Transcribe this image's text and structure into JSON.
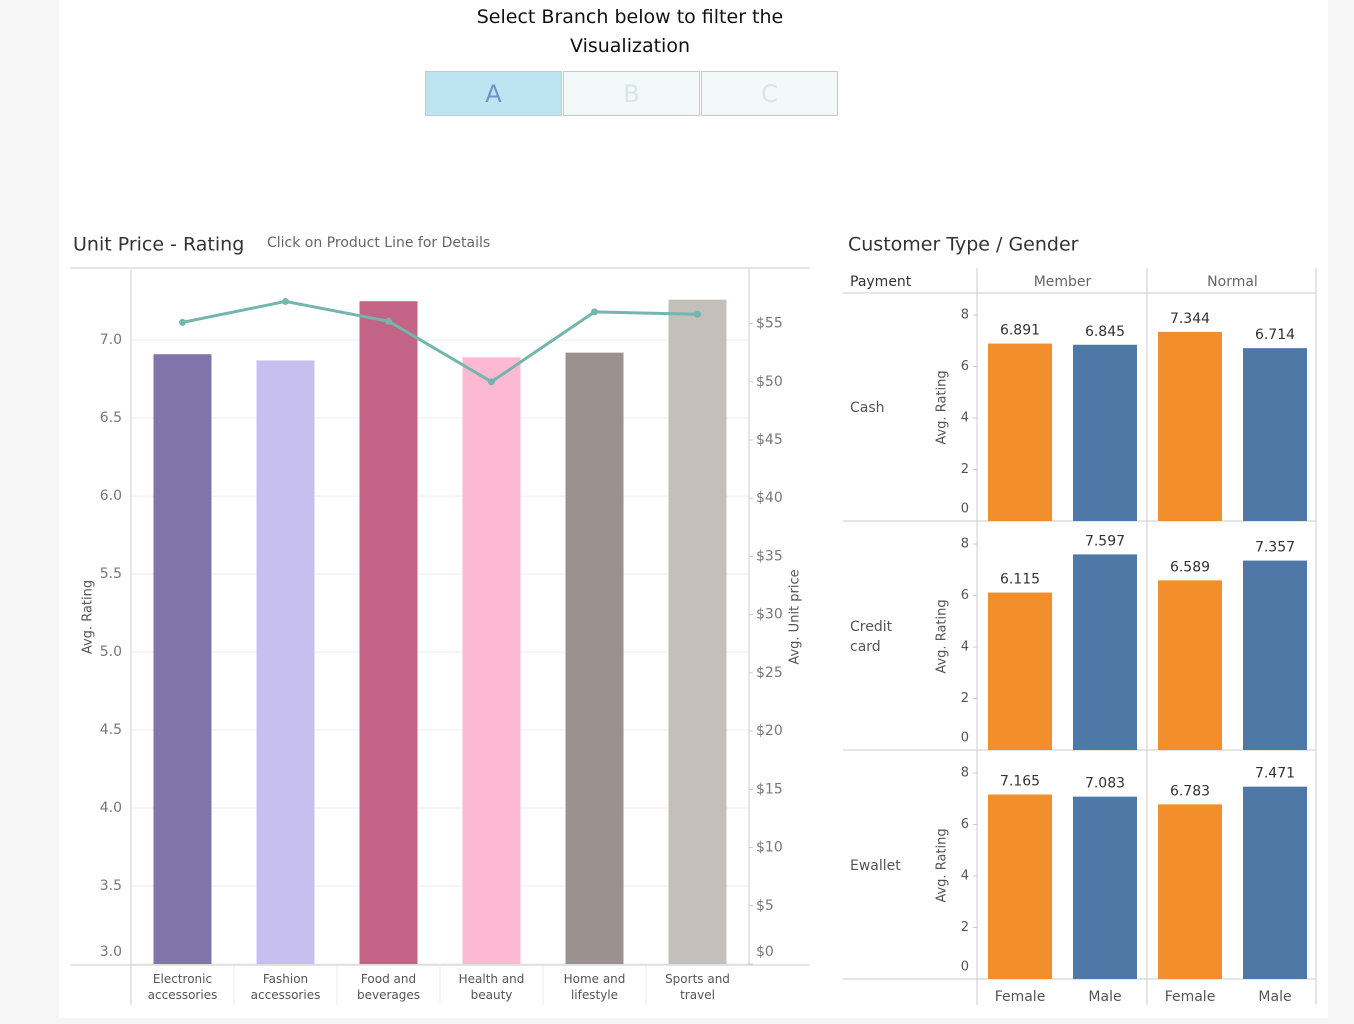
{
  "filter": {
    "title": "Select Branch below to filter the Visualization",
    "options": [
      "A",
      "B",
      "C"
    ],
    "selected": 0
  },
  "chart_data": [
    {
      "type": "combo",
      "title": "Unit Price - Rating",
      "subtitle": "Click on Product Line for Details",
      "categories": [
        "Electronic accessories",
        "Fashion accessories",
        "Food and beverages",
        "Health and beauty",
        "Home and lifestyle",
        "Sports and travel"
      ],
      "series": [
        {
          "type": "bar",
          "colors": [
            "#8174aa",
            "#c7c0ef",
            "#c36486",
            "#fdb9d2",
            "#9b918e",
            "#c5bfbb"
          ],
          "values": [
            6.91,
            6.87,
            7.25,
            6.89,
            6.92,
            7.26
          ]
        },
        {
          "type": "line",
          "axis": "y2",
          "color": "#72b6ad",
          "values": [
            55.1,
            56.9,
            55.2,
            50.0,
            56.0,
            55.8
          ]
        }
      ],
      "ylabel": "Avg. Rating",
      "y2label": "Avg. Unit price",
      "ylim": [
        3,
        7.45
      ],
      "yticks": [
        {
          "value": 3,
          "label": "3.0"
        },
        3.5,
        {
          "value": 4,
          "label": "4.0"
        },
        4.5,
        {
          "value": 5,
          "label": "5.0"
        },
        5.5,
        {
          "value": 6,
          "label": "6.0"
        },
        6.5,
        {
          "value": 7,
          "label": "7.0"
        }
      ],
      "y2lim": [
        0,
        59.6
      ],
      "y2ticks": [
        {
          "value": 0,
          "label": "$0"
        },
        {
          "value": 5,
          "label": "$5"
        },
        {
          "value": 10,
          "label": "$10"
        },
        {
          "value": 15,
          "label": "$15"
        },
        {
          "value": 20,
          "label": "$20"
        },
        {
          "value": 25,
          "label": "$25"
        },
        {
          "value": 30,
          "label": "$30"
        },
        {
          "value": 35,
          "label": "$35"
        },
        {
          "value": 40,
          "label": "$40"
        },
        {
          "value": 45,
          "label": "$45"
        },
        {
          "value": 50,
          "label": "$50"
        },
        {
          "value": 55,
          "label": "$55"
        }
      ],
      "grid": true
    },
    {
      "type": "bar",
      "title": "Customer Type / Gender",
      "row_header": "Payment",
      "rows": [
        "Cash",
        "Credit card",
        "Ewallet"
      ],
      "columns": [
        "Member",
        "Normal"
      ],
      "categories": [
        "Female",
        "Male"
      ],
      "colors": [
        "#f28e2b",
        "#4e79a7"
      ],
      "values": [
        [
          [
            6.891,
            6.845
          ],
          [
            7.344,
            6.714
          ]
        ],
        [
          [
            6.115,
            7.597
          ],
          [
            6.589,
            7.357
          ]
        ],
        [
          [
            7.165,
            7.083
          ],
          [
            6.783,
            7.471
          ]
        ]
      ],
      "ylabel": "Avg. Rating",
      "ylim": [
        0,
        8.7
      ],
      "yticks": [
        0,
        2,
        4,
        6,
        8
      ]
    }
  ]
}
